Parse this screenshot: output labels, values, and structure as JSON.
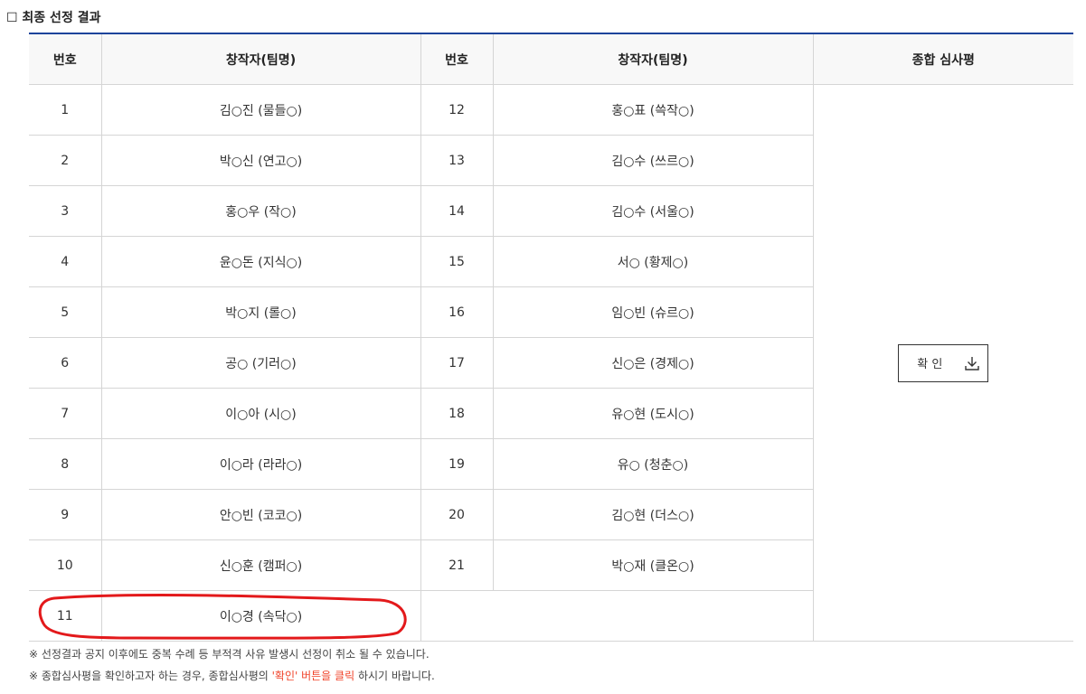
{
  "title": "☐ 최종 선정 결과",
  "headers": {
    "num": "번호",
    "creator": "창작자(팀명)",
    "num2": "번호",
    "creator2": "창작자(팀명)",
    "review": "종합 심사평"
  },
  "left": [
    {
      "num": "1",
      "name": "김○진 (물들○)"
    },
    {
      "num": "2",
      "name": "박○신 (연고○)"
    },
    {
      "num": "3",
      "name": "홍○우 (작○)"
    },
    {
      "num": "4",
      "name": "윤○돈 (지식○)"
    },
    {
      "num": "5",
      "name": "박○지 (롤○)"
    },
    {
      "num": "6",
      "name": "공○ (기러○)"
    },
    {
      "num": "7",
      "name": "이○아 (시○)"
    },
    {
      "num": "8",
      "name": "이○라 (라라○)"
    },
    {
      "num": "9",
      "name": "안○빈 (코코○)"
    },
    {
      "num": "10",
      "name": "신○훈 (캠퍼○)"
    },
    {
      "num": "11",
      "name": "이○경 (속닥○)"
    }
  ],
  "right": [
    {
      "num": "12",
      "name": "홍○표 (쓱작○)"
    },
    {
      "num": "13",
      "name": "김○수 (쓰르○)"
    },
    {
      "num": "14",
      "name": "김○수 (서울○)"
    },
    {
      "num": "15",
      "name": "서○ (황제○)"
    },
    {
      "num": "16",
      "name": "임○빈 (슈르○)"
    },
    {
      "num": "17",
      "name": "신○은 (경제○)"
    },
    {
      "num": "18",
      "name": "유○현 (도시○)"
    },
    {
      "num": "19",
      "name": "유○ (청춘○)"
    },
    {
      "num": "20",
      "name": "김○현 (더스○)"
    },
    {
      "num": "21",
      "name": "박○재 (클온○)"
    }
  ],
  "confirm_button": {
    "label": "확 인",
    "icon": "download-icon"
  },
  "notes": {
    "line1": "※ 선정결과 공지 이후에도 중복 수례 등 부적격 사유 발생시 선정이 취소 될 수 있습니다.",
    "line2_pre": "※ 종합심사평을 확인하고자 하는 경우, 종합심사평의 ",
    "line2_red": "'확인' 버튼을 클릭",
    "line2_post": " 하시기 바랍니다."
  },
  "colors": {
    "accent": "#1d449b",
    "highlight": "#f0432a",
    "annotation": "#e3191b"
  }
}
